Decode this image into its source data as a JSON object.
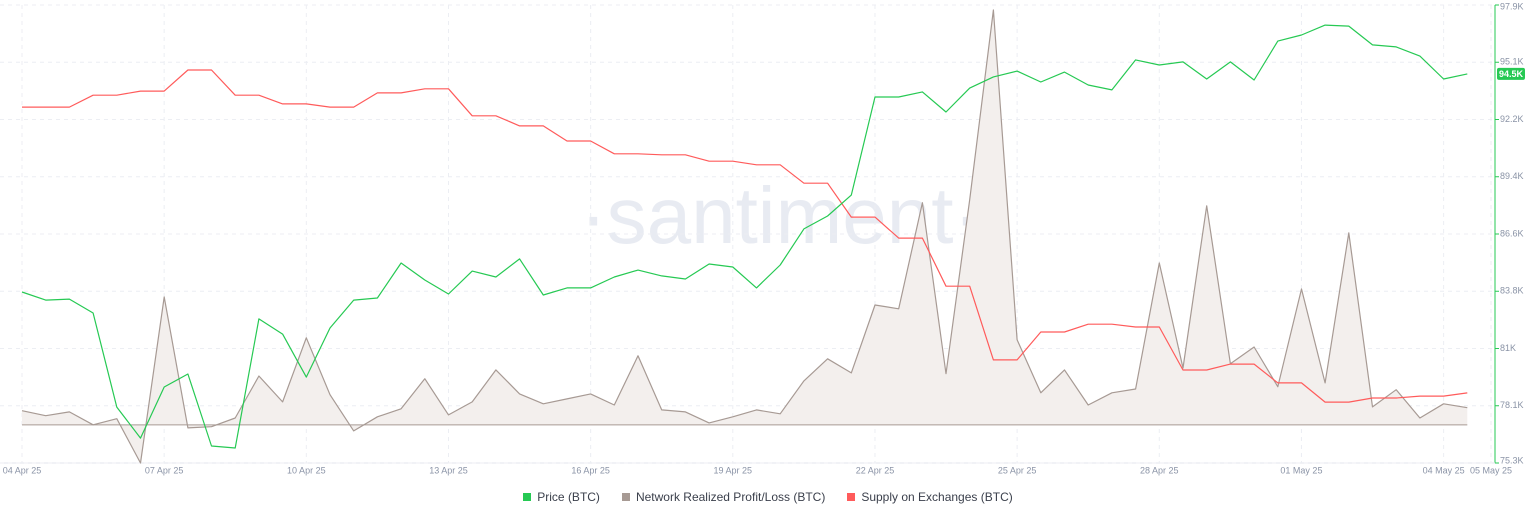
{
  "chart_data": {
    "type": "line",
    "watermark": "·santiment·",
    "categories": [
      "04 Apr 25",
      null,
      null,
      null,
      null,
      null,
      "07 Apr 25",
      null,
      null,
      null,
      null,
      null,
      "10 Apr 25",
      null,
      null,
      null,
      null,
      null,
      "13 Apr 25",
      null,
      null,
      null,
      null,
      null,
      "16 Apr 25",
      null,
      null,
      null,
      null,
      null,
      "19 Apr 25",
      null,
      null,
      null,
      null,
      null,
      "22 Apr 25",
      null,
      null,
      null,
      null,
      null,
      "25 Apr 25",
      null,
      null,
      null,
      null,
      null,
      "28 Apr 25",
      null,
      null,
      null,
      null,
      null,
      "01 May 25",
      null,
      null,
      null,
      null,
      null,
      "04 May 25",
      null,
      "05 May 25"
    ],
    "ylim": [
      75300,
      97900
    ],
    "yticks": [
      {
        "value": 75300,
        "label": "75.3K"
      },
      {
        "value": 78125,
        "label": "78.1K"
      },
      {
        "value": 80950,
        "label": "81K"
      },
      {
        "value": 83775,
        "label": "83.8K"
      },
      {
        "value": 86600,
        "label": "86.6K"
      },
      {
        "value": 89425,
        "label": "89.4K"
      },
      {
        "value": 92250,
        "label": "92.2K"
      },
      {
        "value": 95075,
        "label": "95.1K"
      },
      {
        "value": 97900,
        "label": "97.9K"
      }
    ],
    "grid": true,
    "series": [
      {
        "name": "Price (BTC)",
        "color": "#26c953",
        "current_label": "94.5K",
        "values": [
          83738,
          83340,
          83390,
          82700,
          78060,
          76530,
          79050,
          79690,
          76140,
          76040,
          82410,
          81660,
          79540,
          81960,
          83340,
          83440,
          85170,
          84330,
          83640,
          84770,
          84480,
          85370,
          83590,
          83940,
          83940,
          84480,
          84820,
          84530,
          84380,
          85120,
          84970,
          83940,
          85070,
          86850,
          87490,
          88520,
          93360,
          93360,
          93610,
          92620,
          93800,
          94350,
          94640,
          94100,
          94590,
          93950,
          93710,
          95190,
          94940,
          95090,
          94250,
          95090,
          94200,
          96120,
          96420,
          96910,
          96860,
          95930,
          95830,
          95380,
          94250,
          94500,
          null
        ]
      },
      {
        "name": "Network Realized Profit/Loss (BTC)",
        "color": "#a79a94",
        "fill": "#f3efed",
        "ylim": [
          -100,
          1100
        ],
        "values": [
          37,
          24,
          34,
          0,
          16,
          -100,
          335,
          -8,
          -5,
          18,
          128,
          60,
          228,
          79,
          -16,
          21,
          42,
          121,
          26,
          60,
          144,
          81,
          55,
          68,
          81,
          52,
          181,
          39,
          34,
          5,
          21,
          39,
          29,
          115,
          173,
          136,
          314,
          304,
          582,
          134,
          590,
          1087,
          223,
          84,
          144,
          52,
          84,
          94,
          424,
          149,
          574,
          160,
          204,
          100,
          356,
          110,
          503,
          47,
          92,
          18,
          55,
          45,
          null
        ]
      },
      {
        "name": "Supply on Exchanges (BTC)",
        "color": "#ff5b5b",
        "ylim": [
          1850000,
          1950000
        ],
        "values": [
          1927700,
          1927700,
          1927700,
          1930300,
          1930300,
          1931200,
          1931200,
          1935800,
          1935800,
          1930300,
          1930300,
          1928400,
          1928400,
          1927700,
          1927700,
          1930800,
          1930800,
          1931700,
          1931700,
          1925800,
          1925800,
          1923600,
          1923600,
          1920300,
          1920300,
          1917500,
          1917500,
          1917300,
          1917300,
          1915900,
          1915900,
          1915100,
          1915100,
          1911100,
          1911100,
          1903700,
          1903700,
          1899100,
          1899100,
          1888600,
          1888600,
          1872500,
          1872500,
          1878600,
          1878600,
          1880300,
          1880300,
          1879700,
          1879700,
          1870300,
          1870300,
          1871600,
          1871600,
          1867500,
          1867500,
          1863300,
          1863300,
          1864200,
          1864200,
          1864600,
          1864600,
          1865300,
          null
        ]
      }
    ]
  }
}
